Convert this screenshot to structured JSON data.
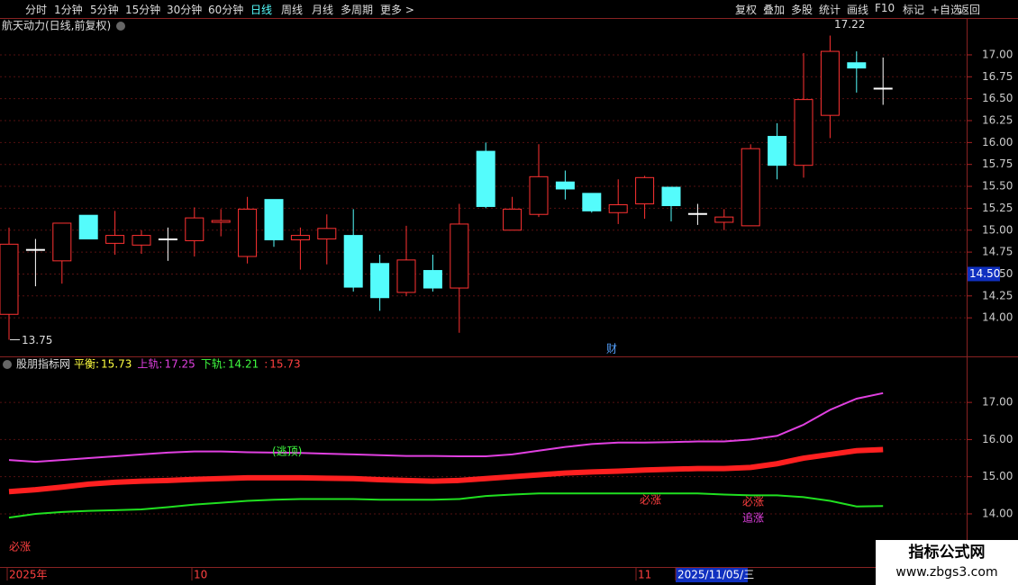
{
  "toolbar": {
    "left": [
      "分时",
      "1分钟",
      "5分钟",
      "15分钟",
      "30分钟",
      "60分钟",
      "日线",
      "周线",
      "月线",
      "多周期",
      "更多 >"
    ],
    "active": 6,
    "right": [
      "复权",
      "叠加",
      "多股",
      "统计",
      "画线",
      "F10",
      "标记",
      "+自选",
      "返回"
    ]
  },
  "chart_data": [
    {
      "type": "candlestick",
      "title": "航天动力(日线,前复权)",
      "open": [
        14.04,
        14.78,
        14.65,
        15.17,
        14.85,
        14.83,
        14.9,
        14.88,
        15.09,
        14.7,
        15.35,
        14.89,
        14.9,
        14.94,
        14.62,
        14.29,
        14.54,
        14.34,
        15.9,
        15.0,
        15.18,
        15.55,
        15.42,
        15.2,
        15.3,
        15.49,
        15.19,
        15.09,
        15.05,
        16.07,
        15.74,
        16.31,
        16.91,
        16.62
      ],
      "high": [
        15.03,
        14.9,
        15.08,
        15.17,
        15.22,
        15.0,
        15.03,
        15.26,
        15.24,
        15.38,
        15.35,
        15.03,
        15.18,
        15.24,
        14.72,
        15.05,
        14.72,
        15.3,
        16.0,
        15.38,
        15.98,
        15.68,
        15.42,
        15.58,
        15.62,
        15.49,
        15.3,
        15.24,
        15.98,
        16.22,
        17.02,
        17.22,
        17.04,
        16.97
      ],
      "low": [
        13.75,
        14.36,
        14.39,
        14.9,
        14.72,
        14.73,
        14.65,
        14.7,
        14.93,
        14.62,
        14.81,
        14.55,
        14.61,
        14.3,
        14.08,
        14.25,
        14.3,
        13.83,
        15.25,
        15.0,
        15.15,
        15.35,
        15.2,
        15.07,
        15.13,
        15.1,
        15.06,
        15.0,
        15.05,
        15.58,
        15.6,
        16.05,
        16.57,
        16.43
      ],
      "close": [
        14.84,
        14.78,
        15.08,
        14.9,
        14.94,
        14.94,
        14.9,
        15.14,
        15.11,
        15.24,
        14.89,
        14.94,
        15.02,
        14.35,
        14.23,
        14.66,
        14.34,
        15.07,
        15.27,
        15.24,
        15.61,
        15.47,
        15.22,
        15.29,
        15.6,
        15.28,
        15.19,
        15.15,
        15.93,
        15.74,
        16.49,
        17.04,
        16.85,
        16.62
      ],
      "up_color": "#ff3232",
      "down_color": "#54fcfc",
      "flat_color": "#ffffff",
      "ylim": [
        13.56,
        17.4
      ],
      "yticks": [
        {
          "value": 14,
          "label": "14.00"
        },
        {
          "value": 14.25,
          "label": "14.25"
        },
        {
          "value": 14.5,
          "label": "14.50"
        },
        {
          "value": 14.75,
          "label": "14.75"
        },
        {
          "value": 15,
          "label": "15.00"
        },
        {
          "value": 15.25,
          "label": "15.25"
        },
        {
          "value": 15.5,
          "label": "15.50"
        },
        {
          "value": 15.75,
          "label": "15.75"
        },
        {
          "value": 16,
          "label": "16.00"
        },
        {
          "value": 16.25,
          "label": "16.25"
        },
        {
          "value": 16.5,
          "label": "16.50"
        },
        {
          "value": 16.75,
          "label": "16.75"
        },
        {
          "value": 17,
          "label": "17.00"
        }
      ],
      "grid": true,
      "high_marker": 17.22,
      "low_marker": 13.75,
      "price_tag": {
        "value": 14.5,
        "label": "14.50"
      },
      "note": "财"
    },
    {
      "type": "line",
      "title": "股朋指标网",
      "series": [
        {
          "name": "平衡:",
          "color": "#ff2020",
          "values": [
            14.6,
            14.65,
            14.72,
            14.8,
            14.85,
            14.88,
            14.9,
            14.93,
            14.95,
            14.97,
            14.97,
            14.97,
            14.96,
            14.95,
            14.92,
            14.9,
            14.88,
            14.9,
            14.95,
            15.0,
            15.05,
            15.1,
            15.13,
            15.15,
            15.18,
            15.2,
            15.22,
            15.22,
            15.25,
            15.35,
            15.5,
            15.6,
            15.7,
            15.73
          ]
        },
        {
          "name": "上轨:",
          "color": "#e040e0",
          "values": [
            15.45,
            15.4,
            15.45,
            15.5,
            15.55,
            15.6,
            15.65,
            15.68,
            15.68,
            15.66,
            15.65,
            15.64,
            15.62,
            15.6,
            15.58,
            15.56,
            15.56,
            15.55,
            15.55,
            15.6,
            15.7,
            15.8,
            15.88,
            15.92,
            15.92,
            15.93,
            15.95,
            15.95,
            16.0,
            16.1,
            16.4,
            16.8,
            17.1,
            17.25
          ]
        },
        {
          "name": "下轨:",
          "color": "#20e020",
          "values": [
            13.9,
            14.0,
            14.05,
            14.08,
            14.1,
            14.12,
            14.18,
            14.25,
            14.3,
            14.35,
            14.38,
            14.4,
            14.4,
            14.4,
            14.38,
            14.38,
            14.38,
            14.4,
            14.48,
            14.52,
            14.55,
            14.55,
            14.55,
            14.55,
            14.55,
            14.55,
            14.55,
            14.52,
            14.5,
            14.5,
            14.45,
            14.35,
            14.2,
            14.21
          ]
        }
      ],
      "extra": {
        "label": ":",
        "value": 15.73
      },
      "ylim": [
        12.57,
        18.19
      ],
      "yticks": [
        {
          "value": 14,
          "label": "14.00"
        },
        {
          "value": 15,
          "label": "15.00"
        },
        {
          "value": 16,
          "label": "16.00"
        },
        {
          "value": 17,
          "label": "17.00"
        }
      ],
      "annotations": [
        "(逃顶)",
        "必涨",
        "必涨",
        "必涨",
        "追涨"
      ],
      "date_labels": [
        "2025年",
        "10",
        "11",
        "2025/11/05/三"
      ]
    }
  ],
  "watermark": {
    "title": "指标公式网",
    "url": "www.zbgs3.com"
  }
}
